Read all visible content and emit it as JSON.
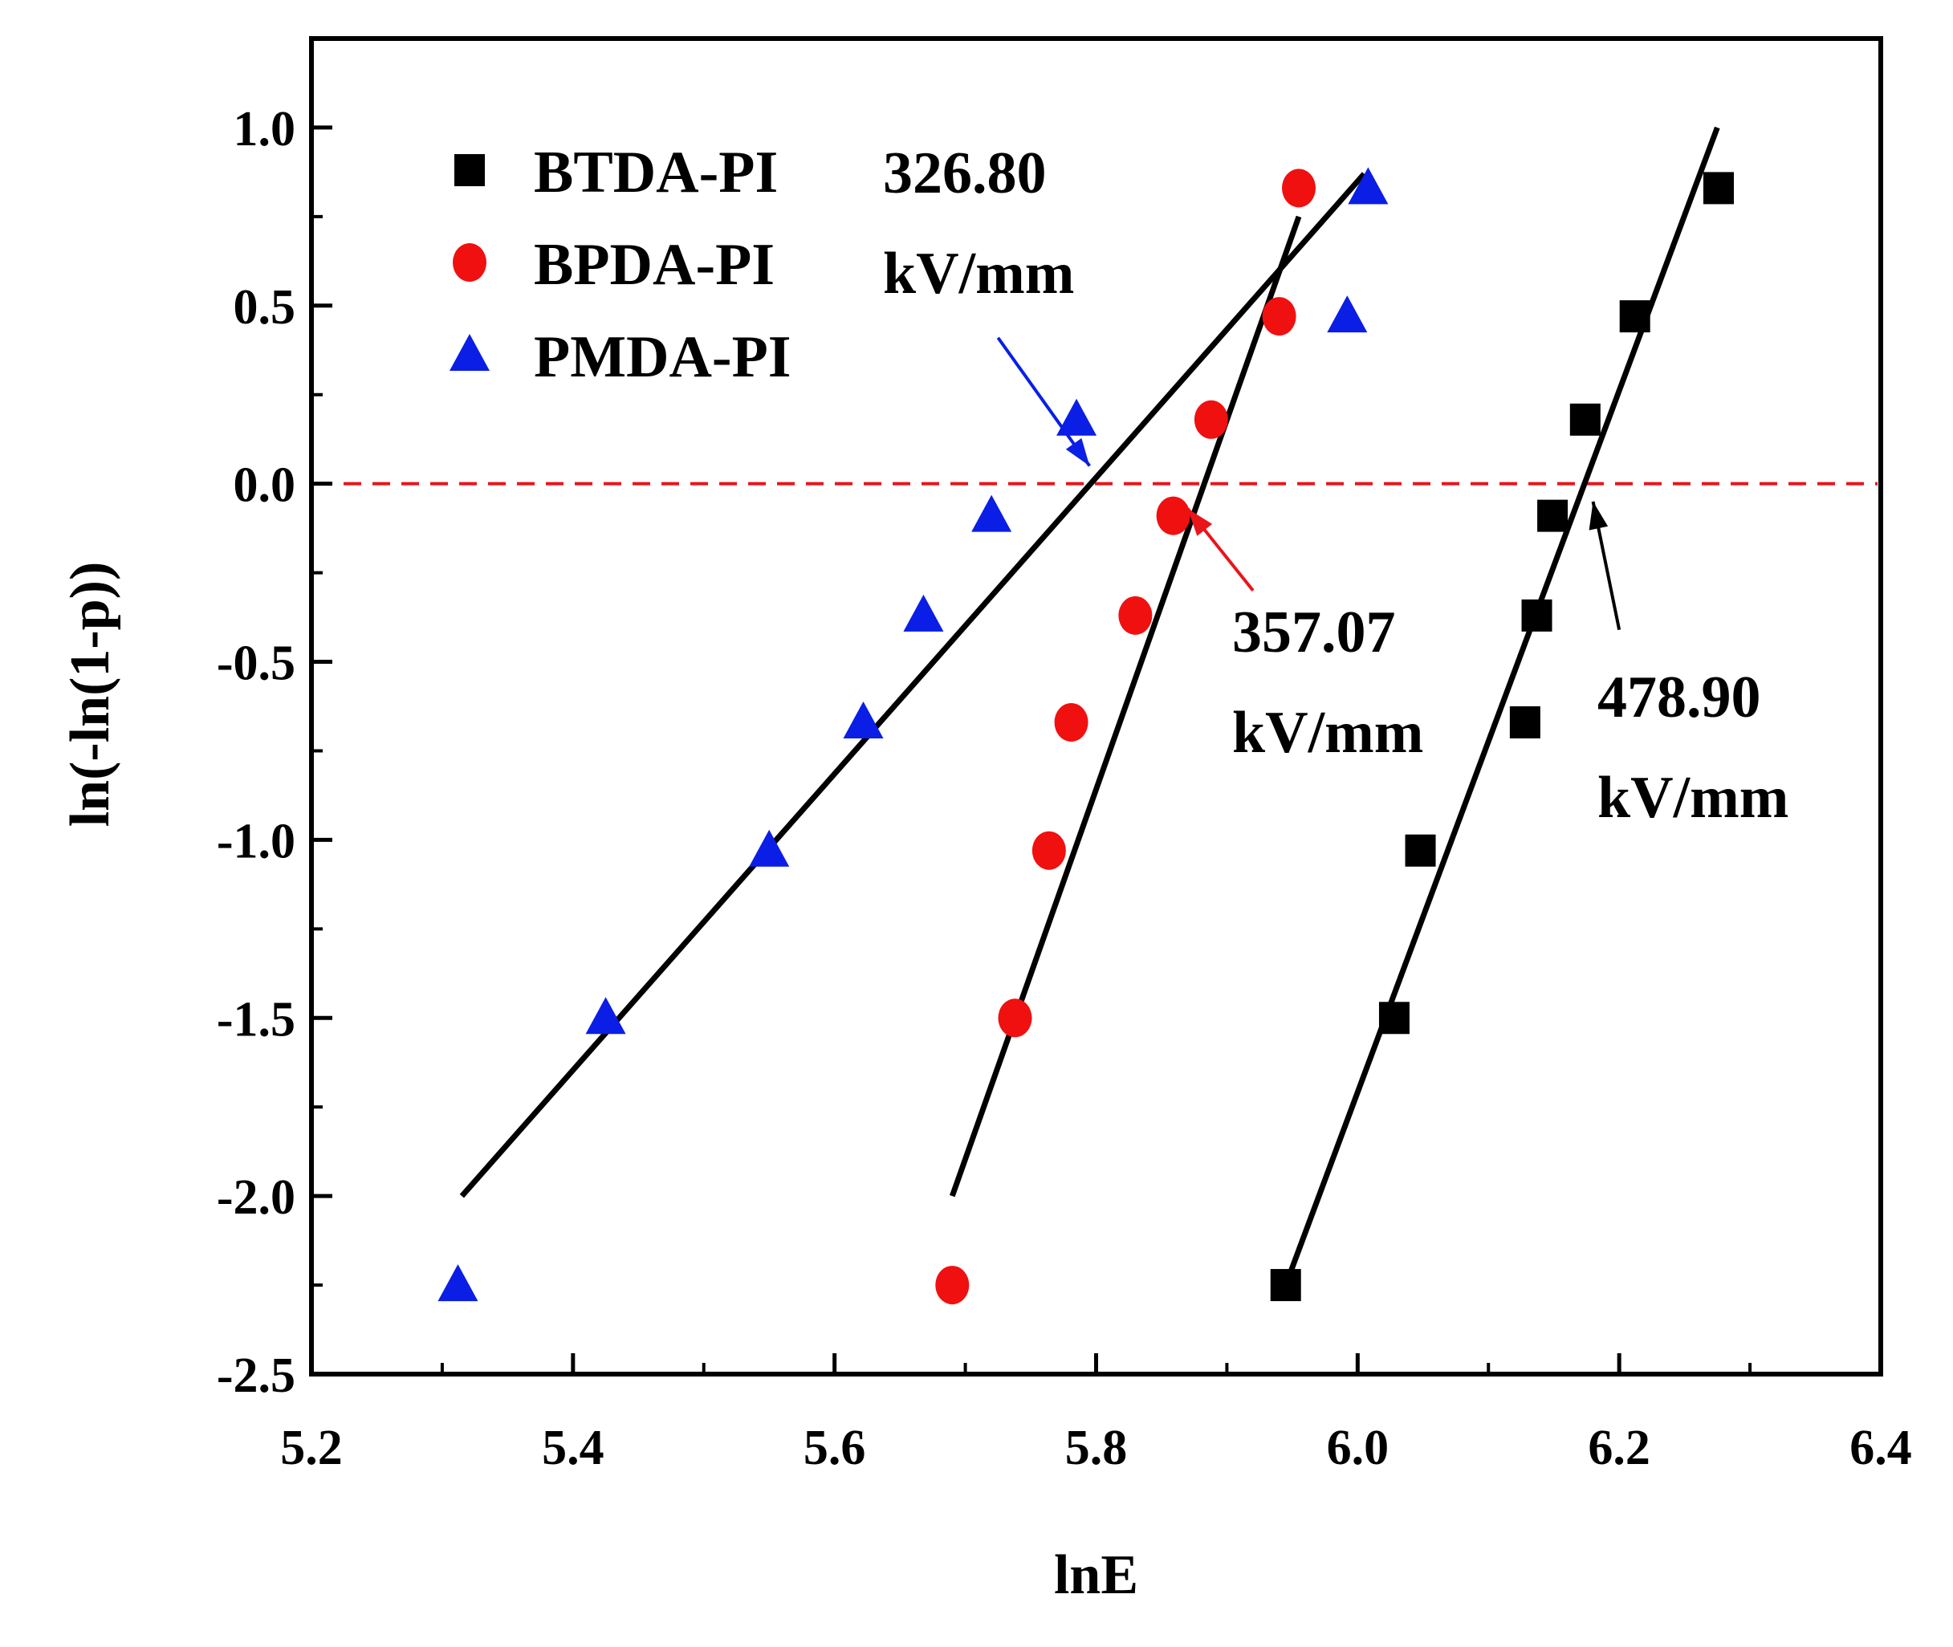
{
  "chart_data": {
    "type": "scatter",
    "title": "",
    "xlabel": "lnE",
    "ylabel": "ln(-ln(1-p))",
    "xlim": [
      5.2,
      6.4
    ],
    "ylim": [
      -2.5,
      1.25
    ],
    "xticks": [
      5.2,
      5.4,
      5.6,
      5.8,
      6.0,
      6.2,
      6.4
    ],
    "xtick_labels": [
      "5.2",
      "5.4",
      "5.6",
      "5.8",
      "6.0",
      "6.2",
      "6.4"
    ],
    "yticks": [
      1.0,
      0.5,
      0.0,
      -0.5,
      -1.0,
      -1.5,
      -2.0,
      -2.5
    ],
    "ytick_labels": [
      "1.0",
      "0.5",
      "0.0",
      "-0.5",
      "-1.0",
      "-1.5",
      "-2.0",
      "-2.5"
    ],
    "legend_position": "top-left",
    "reference_line": {
      "y": 0,
      "color": "#e8151b",
      "style": "dashed"
    },
    "series": [
      {
        "name": "BTDA-PI",
        "marker": "square",
        "color": "#000000",
        "x": [
          5.945,
          6.028,
          6.048,
          6.128,
          6.137,
          6.149,
          6.174,
          6.212,
          6.276
        ],
        "y": [
          -2.25,
          -1.5,
          -1.03,
          -0.67,
          -0.37,
          -0.09,
          0.18,
          0.47,
          0.83
        ],
        "fit": {
          "x": [
            5.945,
            6.275
          ],
          "y": [
            -2.25,
            1.0
          ]
        }
      },
      {
        "name": "BPDA-PI",
        "marker": "circle",
        "color": "#f01010",
        "x": [
          5.69,
          5.738,
          5.764,
          5.781,
          5.83,
          5.859,
          5.888,
          5.94,
          5.955
        ],
        "y": [
          -2.25,
          -1.5,
          -1.03,
          -0.67,
          -0.37,
          -0.09,
          0.18,
          0.47,
          0.83
        ],
        "fit": {
          "x": [
            5.69,
            5.955
          ],
          "y": [
            -2.0,
            0.75
          ]
        }
      },
      {
        "name": "PMDA-PI",
        "marker": "triangle",
        "color": "#0a1ee6",
        "x": [
          5.312,
          5.425,
          5.55,
          5.622,
          5.668,
          5.72,
          5.785,
          5.992,
          6.008
        ],
        "y": [
          -2.25,
          -1.5,
          -1.03,
          -0.67,
          -0.37,
          -0.09,
          0.18,
          0.47,
          0.83
        ],
        "fit": {
          "x": [
            5.315,
            6.005
          ],
          "y": [
            -2.0,
            0.87
          ]
        }
      }
    ],
    "annotations": [
      {
        "text": [
          "326.80",
          "kV/mm"
        ],
        "color": "#0a1ee6",
        "arrow_from": [
          5.725,
          0.41
        ],
        "arrow_to": [
          5.795,
          0.05
        ]
      },
      {
        "text": [
          "357.07",
          "kV/mm"
        ],
        "color": "#e8151b",
        "arrow_from": [
          5.92,
          -0.3
        ],
        "arrow_to": [
          5.87,
          -0.07
        ]
      },
      {
        "text": [
          "478.90",
          "kV/mm"
        ],
        "color": "#000000",
        "arrow_from": [
          6.2,
          -0.41
        ],
        "arrow_to": [
          6.18,
          -0.05
        ]
      }
    ]
  }
}
